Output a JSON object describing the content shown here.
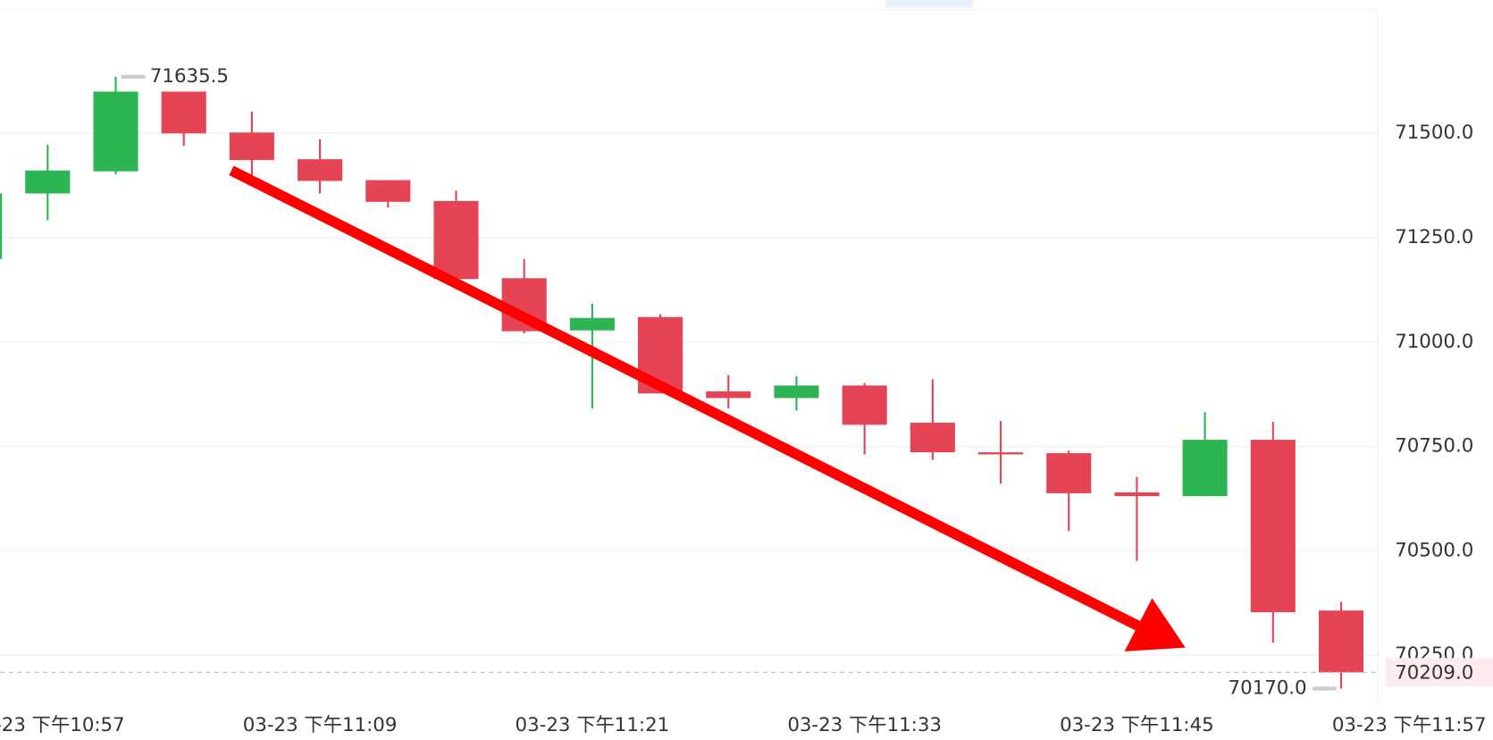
{
  "chart_data": {
    "type": "candlestick",
    "categories": [
      null,
      "03-23 下午10:57",
      null,
      null,
      null,
      "03-23 下午11:09",
      null,
      null,
      null,
      "03-23 下午11:21",
      null,
      null,
      null,
      "03-23 下午11:33",
      null,
      null,
      null,
      "03-23 下午11:45",
      null,
      null,
      null,
      "03-23 下午11:57"
    ],
    "open": [
      71199,
      71356,
      71409,
      71600,
      71502,
      71438,
      71388,
      71338,
      71153,
      71028,
      71060,
      70882,
      70866,
      70896,
      70807,
      70736,
      70734,
      70640,
      70631,
      70766,
      70357,
      null
    ],
    "high": [
      71360,
      71473,
      71635.5,
      71600,
      71552,
      71486,
      71388,
      71363,
      71199,
      71092,
      71067,
      70921,
      70918,
      70902,
      70911,
      70811,
      70740,
      70677,
      70832,
      70809,
      70378,
      null
    ],
    "low": [
      71195,
      71292,
      71402,
      71470,
      71397,
      71356,
      71322,
      71151,
      71021,
      70841,
      70877,
      70841,
      70836,
      70731,
      70718,
      70661,
      70547,
      70476,
      70631,
      70280,
      70170,
      null
    ],
    "close": [
      71356,
      71411,
      71600,
      71500,
      71436,
      71386,
      71336,
      71151,
      71026,
      71058,
      70877,
      70866,
      70896,
      70802,
      70736,
      70731,
      70638,
      70631,
      70766,
      70353,
      70209,
      null
    ],
    "up_color": "#2db553",
    "down_color": "#e44454",
    "ylim": [
      70130,
      71800
    ],
    "yticks": [
      {
        "value": 70250,
        "label": "70250.0"
      },
      {
        "value": 70500,
        "label": "70500.0"
      },
      {
        "value": 70750,
        "label": "70750.0"
      },
      {
        "value": 71000,
        "label": "71000.0"
      },
      {
        "value": 71250,
        "label": "71250.0"
      },
      {
        "value": 71500,
        "label": "71500.0"
      }
    ],
    "grid": true,
    "high_label": {
      "value": 71635.5,
      "label": "71635.5"
    },
    "low_label": {
      "value": 70170,
      "label": "70170.0"
    },
    "last_price": {
      "value": 70209,
      "label": "70209.0"
    }
  }
}
